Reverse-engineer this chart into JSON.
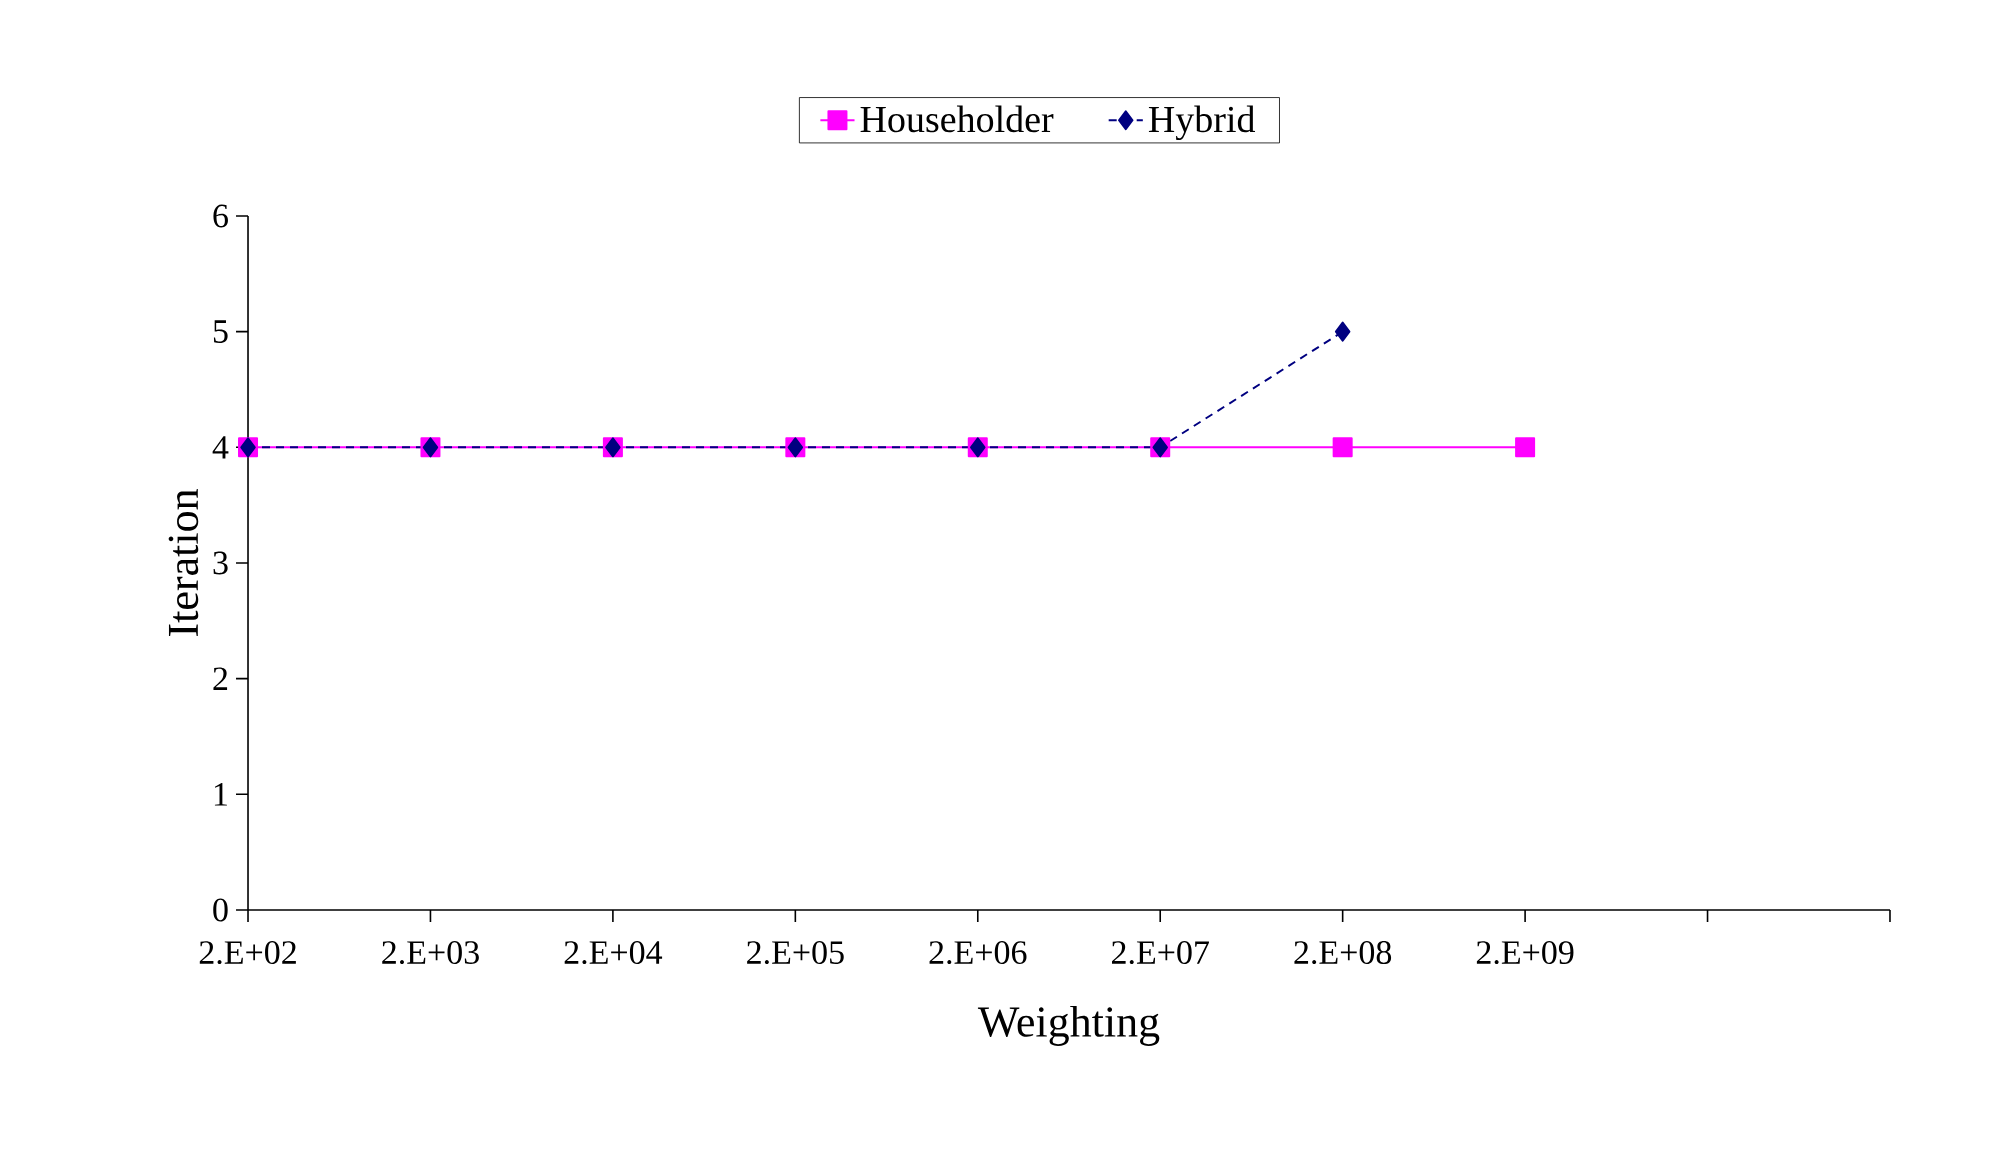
{
  "chart_data": {
    "type": "line",
    "xlabel": "Weighting",
    "ylabel": "Iteration",
    "categories": [
      "2.E+02",
      "2.E+03",
      "2.E+04",
      "2.E+05",
      "2.E+06",
      "2.E+07",
      "2.E+08",
      "2.E+09",
      null,
      null
    ],
    "series": [
      {
        "name": "Householder",
        "color": "#ff00ff",
        "marker": "square",
        "line_style": "solid",
        "values": [
          4,
          4,
          4,
          4,
          4,
          4,
          4,
          4,
          null,
          null
        ]
      },
      {
        "name": "Hybrid",
        "color": "#000080",
        "marker": "diamond",
        "line_style": "dashed",
        "values": [
          4,
          4,
          4,
          4,
          4,
          4,
          5,
          null,
          null,
          null
        ]
      }
    ],
    "ylim": [
      0,
      6
    ],
    "yticks": [
      0,
      1,
      2,
      3,
      4,
      5,
      6
    ],
    "legend": "top"
  }
}
